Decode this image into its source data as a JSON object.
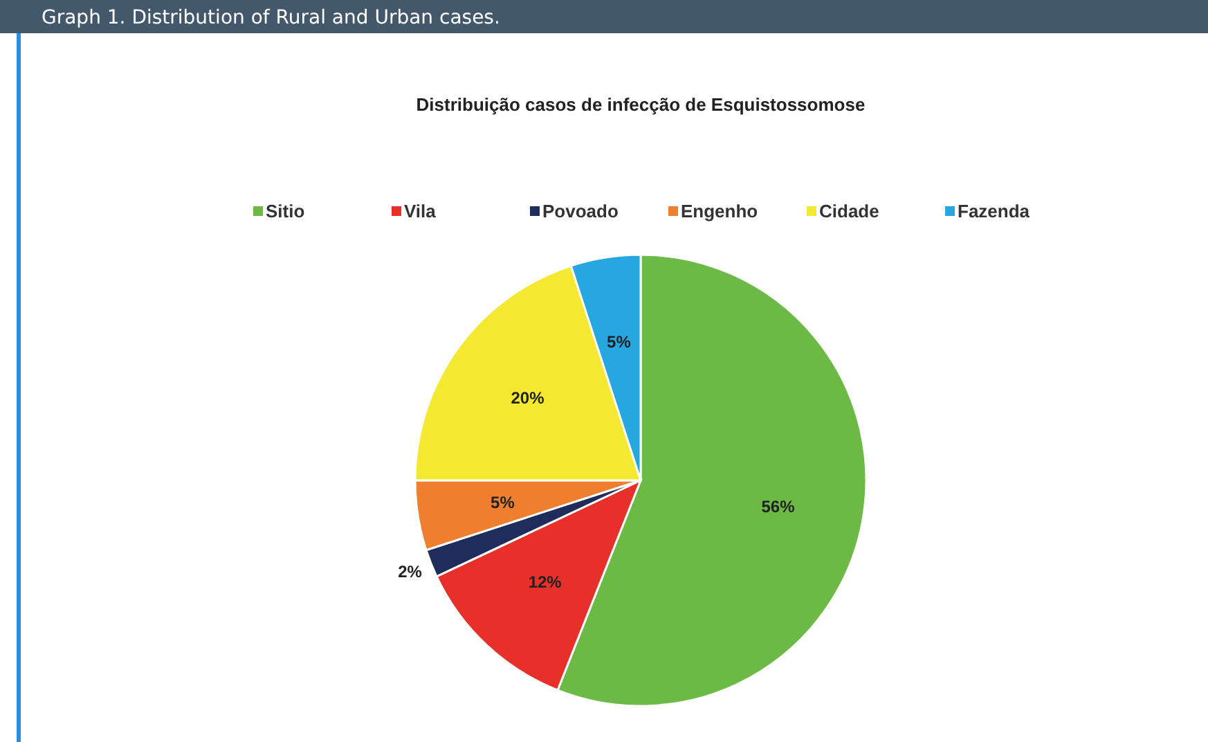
{
  "chart_data": {
    "type": "pie",
    "title": "Distribuição casos de infecção de Esquistossomose",
    "annotations": [
      "Graph 1. Distribution of Rural and Urban cases."
    ],
    "categories": [
      "Sitio",
      "Vila",
      "Povoado",
      "Engenho",
      "Cidade",
      "Fazenda"
    ],
    "values": [
      56,
      12,
      2,
      5,
      20,
      5
    ],
    "colors": [
      "#6cb945",
      "#e8302a",
      "#1f2d5c",
      "#ef7f2e",
      "#f4e930",
      "#27a7df"
    ],
    "value_labels": [
      "56%",
      "12%",
      "2%",
      "5%",
      "20%",
      "5%"
    ],
    "legend": "top"
  }
}
